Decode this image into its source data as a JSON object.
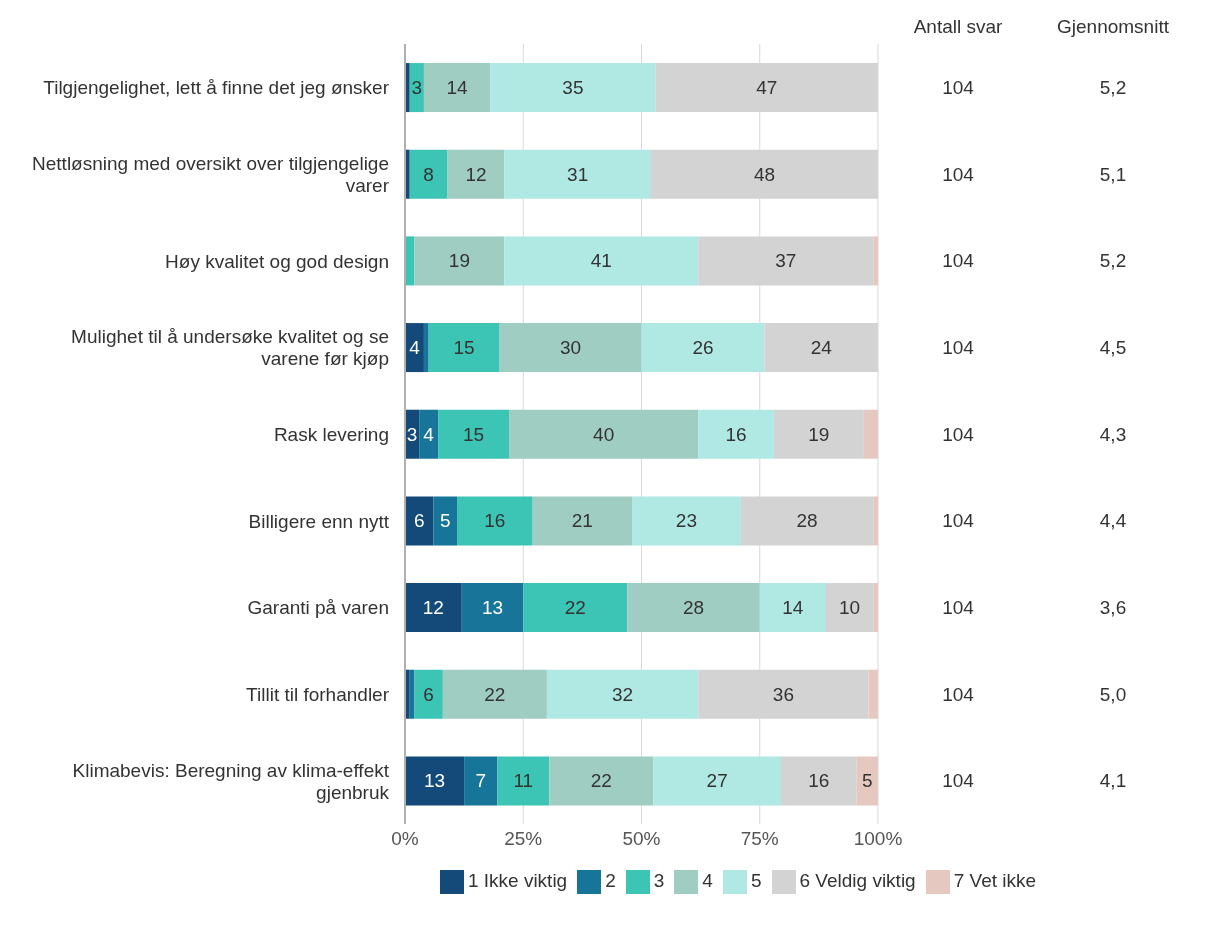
{
  "chart_data": {
    "type": "bar",
    "orientation": "horizontal",
    "stacked": true,
    "categories": [
      "Tilgjengelighet, lett å finne det jeg ønsker",
      "Nettløsning med oversikt over tilgjengelige varer",
      "Høy kvalitet og god design",
      "Mulighet til å undersøke kvalitet og se varene før kjøp",
      "Rask levering",
      "Billigere enn nytt",
      "Garanti på varen",
      "Tillit til forhandler",
      "Klimabevis: Beregning av klima-effekt gjenbruk"
    ],
    "series": [
      {
        "name": "1 Ikke viktig",
        "color": "#134a7a",
        "values": [
          1,
          1,
          0,
          4,
          3,
          6,
          12,
          1,
          12.5
        ],
        "value_labels": [
          null,
          null,
          null,
          "4",
          "3",
          "6",
          "12",
          null,
          "13"
        ]
      },
      {
        "name": "2",
        "color": "#17759a",
        "values": [
          0,
          0,
          0,
          1,
          4,
          5,
          13,
          1,
          7
        ],
        "value_labels": [
          null,
          null,
          null,
          null,
          "4",
          "5",
          "13",
          null,
          "7"
        ]
      },
      {
        "name": "3",
        "color": "#3cc4b4",
        "values": [
          3,
          8,
          2,
          15,
          15,
          16,
          22,
          6,
          11
        ],
        "value_labels": [
          "3",
          "8",
          null,
          "15",
          "15",
          "16",
          "22",
          "6",
          "11"
        ]
      },
      {
        "name": "4",
        "color": "#9fcdc2",
        "values": [
          14,
          12,
          19,
          30,
          40,
          21,
          28,
          22,
          22
        ],
        "value_labels": [
          "14",
          "12",
          "19",
          "30",
          "40",
          "21",
          "28",
          "22",
          "22"
        ]
      },
      {
        "name": "5",
        "color": "#b0e8e3",
        "values": [
          35,
          31,
          41,
          26,
          16,
          23,
          14,
          32,
          27
        ],
        "value_labels": [
          "35",
          "31",
          "41",
          "26",
          "16",
          "23",
          "14",
          "32",
          "27"
        ]
      },
      {
        "name": "6 Veldig viktig",
        "color": "#d3d3d3",
        "values": [
          47,
          48,
          37,
          24,
          19,
          28,
          10,
          36,
          16
        ],
        "value_labels": [
          "47",
          "48",
          "37",
          "24",
          "19",
          "28",
          "10",
          "36",
          "16"
        ]
      },
      {
        "name": "7 Vet ikke",
        "color": "#e5c8c0",
        "values": [
          0,
          0,
          1,
          0,
          3,
          1,
          1,
          2,
          4.5
        ],
        "value_labels": [
          null,
          null,
          null,
          null,
          null,
          null,
          null,
          null,
          "5"
        ]
      }
    ],
    "xlim": [
      0,
      100
    ],
    "xticks": [
      {
        "value": 0,
        "label": "0%"
      },
      {
        "value": 25,
        "label": "25%"
      },
      {
        "value": 50,
        "label": "50%"
      },
      {
        "value": 75,
        "label": "75%"
      },
      {
        "value": 100,
        "label": "100%"
      }
    ],
    "grid": "x",
    "legend": "bottom",
    "annotations": [
      "Antall svar",
      "Gjennomsnitt",
      "104",
      "5,2",
      "104",
      "5,1",
      "104",
      "5,2",
      "104",
      "4,5",
      "104",
      "4,3",
      "104",
      "4,4",
      "104",
      "3,6",
      "104",
      "5,0",
      "104",
      "4,1"
    ]
  }
}
